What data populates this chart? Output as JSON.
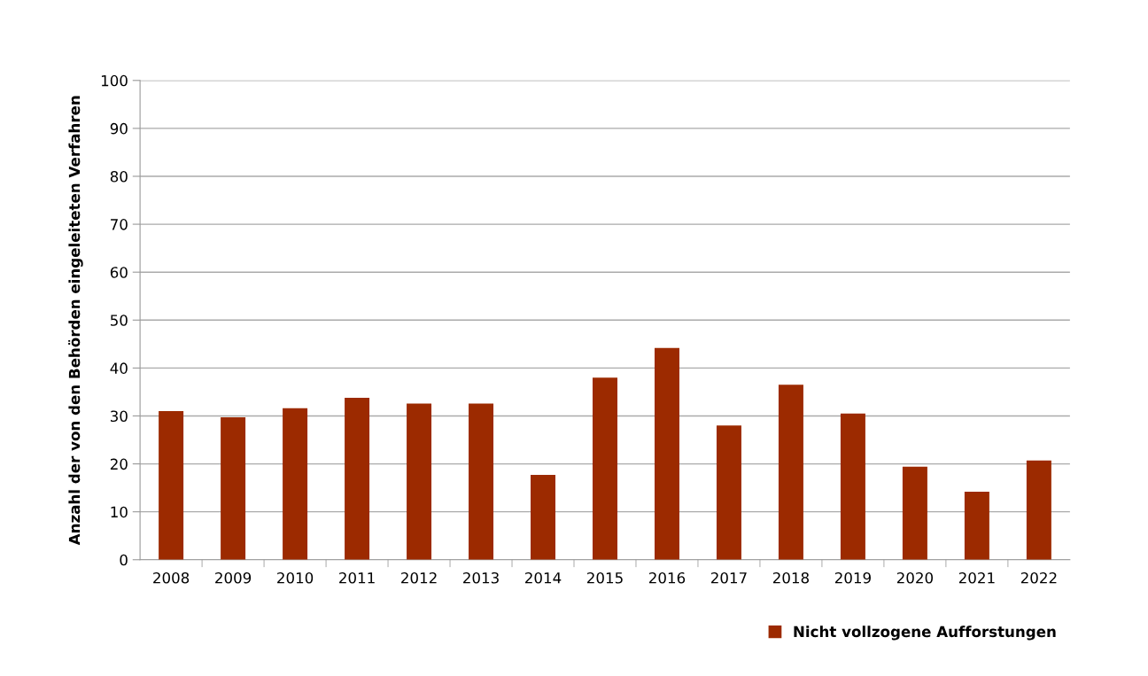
{
  "chart_data": {
    "type": "bar",
    "ylabel": "Anzahl der von den Behörden eingeleiteten Verfahren",
    "categories": [
      "2008",
      "2009",
      "2010",
      "2011",
      "2012",
      "2013",
      "2014",
      "2015",
      "2016",
      "2017",
      "2018",
      "2019",
      "2020",
      "2021",
      "2022"
    ],
    "series": [
      {
        "name": "Nicht vollzogene Aufforstungen",
        "color": "#9c2a00",
        "values": [
          31.0,
          29.7,
          31.6,
          33.8,
          32.6,
          32.6,
          17.7,
          38.0,
          44.2,
          28.0,
          36.5,
          30.5,
          19.4,
          14.2,
          20.7
        ]
      }
    ],
    "ylim": [
      0,
      100
    ],
    "yticks": [
      0,
      10,
      20,
      30,
      40,
      50,
      60,
      70,
      80,
      90,
      100
    ],
    "grid": "y",
    "legend": "bottom right"
  }
}
